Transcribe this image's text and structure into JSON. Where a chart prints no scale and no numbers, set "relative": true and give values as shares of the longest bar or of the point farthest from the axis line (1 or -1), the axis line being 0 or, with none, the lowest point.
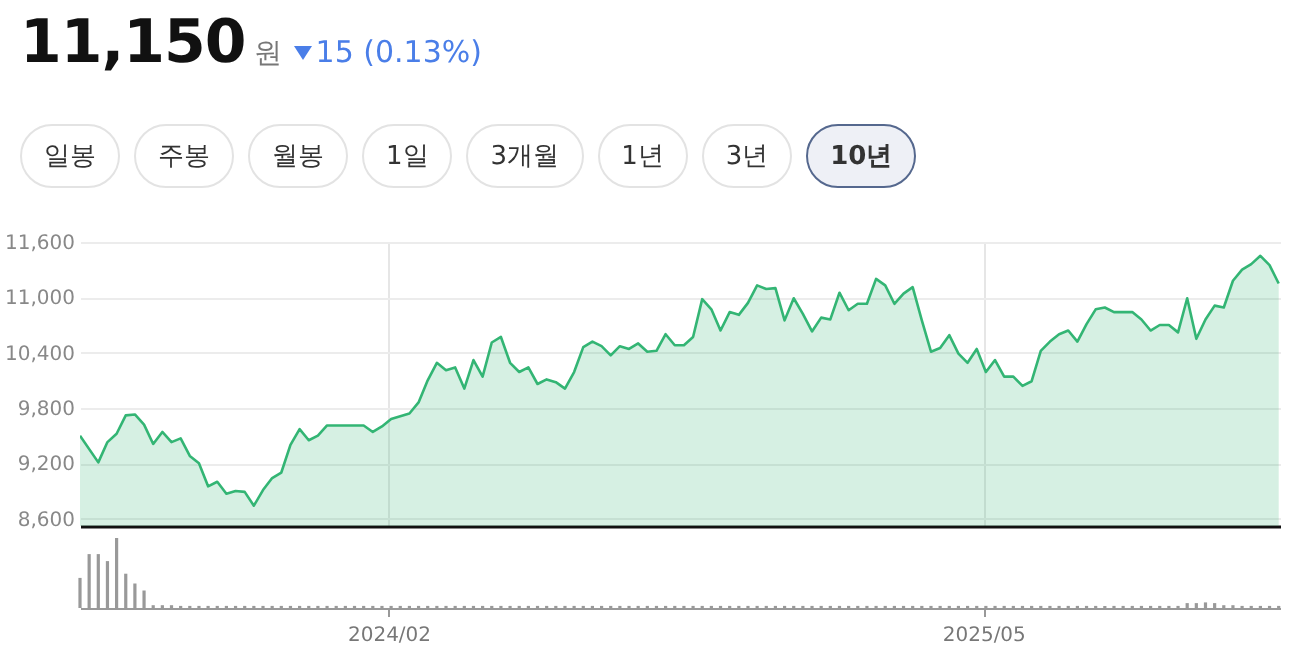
{
  "chart_data": [
    {
      "type": "area",
      "title": "11,150",
      "subtitle": "원",
      "annotations": [
        "15 (0.13%)",
        "일봉",
        "주봉",
        "월봉",
        "1일",
        "3개월",
        "1년",
        "3년",
        "10년"
      ],
      "x": [
        "2023-06-10",
        "2023-06-24",
        "2023-07-01",
        "2023-07-08",
        "2023-07-15",
        "2023-07-22",
        "2023-07-29",
        "2023-08-05",
        "2023-08-12",
        "2023-08-19",
        "2023-08-26",
        "2023-09-02",
        "2023-09-09",
        "2023-09-16",
        "2023-09-23",
        "2023-09-30",
        "2023-10-07",
        "2023-10-14",
        "2023-10-21",
        "2023-10-28",
        "2023-11-04",
        "2023-11-11",
        "2023-11-18",
        "2023-11-25",
        "2023-12-02",
        "2023-12-09",
        "2023-12-16",
        "2023-12-30",
        "2024-01-13",
        "2024-01-20",
        "2024-01-27",
        "2024-02-03",
        "2024-02-17",
        "2024-02-24",
        "2024-03-02",
        "2024-03-09",
        "2024-03-16",
        "2024-03-23",
        "2024-03-30",
        "2024-04-06",
        "2024-04-13",
        "2024-04-20",
        "2024-04-27",
        "2024-05-04",
        "2024-05-11",
        "2024-05-18",
        "2024-05-25",
        "2024-06-01",
        "2024-06-08",
        "2024-06-15",
        "2024-06-22",
        "2024-06-29",
        "2024-07-06",
        "2024-07-13",
        "2024-07-20",
        "2024-07-27",
        "2024-08-03",
        "2024-08-10",
        "2024-08-17",
        "2024-08-24",
        "2024-08-31",
        "2024-09-07",
        "2024-09-14",
        "2024-09-21",
        "2024-09-28",
        "2024-10-05",
        "2024-10-12",
        "2024-10-19",
        "2024-10-26",
        "2024-11-02",
        "2024-11-09",
        "2024-11-16",
        "2024-11-23",
        "2024-11-30",
        "2024-12-07",
        "2024-12-14",
        "2024-12-21",
        "2024-12-28",
        "2025-01-04",
        "2025-01-11",
        "2025-01-18",
        "2025-01-25",
        "2025-02-01",
        "2025-02-08",
        "2025-02-15",
        "2025-02-22",
        "2025-03-01",
        "2025-03-08",
        "2025-03-15",
        "2025-03-22",
        "2025-03-29",
        "2025-04-05",
        "2025-04-12",
        "2025-04-19",
        "2025-04-26",
        "2025-05-03",
        "2025-05-10",
        "2025-05-17",
        "2025-05-24",
        "2025-05-31",
        "2025-06-07",
        "2025-06-14",
        "2025-06-21",
        "2025-06-28",
        "2025-07-05",
        "2025-07-12",
        "2025-07-19",
        "2025-07-26",
        "2025-08-02",
        "2025-08-09",
        "2025-08-16",
        "2025-08-23",
        "2025-08-30",
        "2025-09-06",
        "2025-09-13",
        "2025-09-20",
        "2025-09-27",
        "2025-10-04",
        "2025-10-11",
        "2025-10-18",
        "2025-10-25",
        "2025-11-01",
        "2025-11-08",
        "2025-11-15",
        "2025-11-22",
        "2025-11-29",
        "2025-12-06",
        "2025-12-13"
      ],
      "series": [
        {
          "color": "#33b574",
          "values": [
            9500,
            9210,
            9430,
            9520,
            9720,
            9730,
            9620,
            9410,
            9540,
            9430,
            9470,
            9280,
            9200,
            8950,
            9000,
            8870,
            8900,
            8890,
            8740,
            8910,
            9040,
            9100,
            9400,
            9570,
            9450,
            9500,
            9610,
            9610,
            9610,
            9540,
            9600,
            9680,
            9740,
            9860,
            10100,
            10290,
            10210,
            10240,
            10010,
            10320,
            10140,
            10510,
            10570,
            10290,
            10190,
            10240,
            10060,
            10110,
            10080,
            10010,
            10190,
            10460,
            10520,
            10470,
            10370,
            10470,
            10440,
            10500,
            10410,
            10420,
            10600,
            10480,
            10480,
            10570,
            10980,
            10870,
            10640,
            10840,
            10810,
            10940,
            11130,
            11090,
            11100,
            10750,
            10990,
            10820,
            10630,
            10780,
            10760,
            11050,
            10860,
            10930,
            10930,
            11200,
            11130,
            10930,
            11040,
            11110,
            10750,
            10410,
            10450,
            10590,
            10390,
            10290,
            10440,
            10190,
            10320,
            10140,
            10140,
            10040,
            10090,
            10420,
            10520,
            10600,
            10640,
            10520,
            10710,
            10870,
            10890,
            10840,
            10840,
            10840,
            10760,
            10640,
            10700,
            10700,
            10620,
            10990,
            10550,
            10760,
            10910,
            10890,
            11180,
            11300,
            11360,
            11450,
            11350,
            11150
          ]
        }
      ],
      "xlim": [
        "2023-06-10",
        "2025-12-14"
      ],
      "xticks": [
        {
          "value": "2024-02-01",
          "label": null
        },
        {
          "value": "2025-05-01",
          "label": null
        }
      ],
      "ylim": [
        8520,
        11600
      ],
      "yticks": [
        {
          "value": 8600,
          "label": "8,600"
        },
        {
          "value": 9200,
          "label": "9,200"
        },
        {
          "value": 9800,
          "label": "9,800"
        },
        {
          "value": 10400,
          "label": "10,400"
        },
        {
          "value": 11000,
          "label": "11,000"
        },
        {
          "value": 11600,
          "label": "11,600"
        }
      ],
      "grid": true,
      "tick_labels": "y"
    },
    {
      "type": "bar",
      "relative": true,
      "tick_labels": "x",
      "x": [
        "2023-06-10",
        "2023-06-17",
        "2023-06-24",
        "2023-07-01",
        "2023-07-08",
        "2023-07-15",
        "2023-07-22",
        "2023-07-29",
        "2023-08-05",
        "2023-08-12",
        "2023-08-19",
        "2023-08-26",
        "2023-09-02",
        "2023-09-09",
        "2023-09-16",
        "2023-09-23",
        "2023-09-30",
        "2023-10-07",
        "2023-10-14",
        "2023-10-21",
        "2023-10-28",
        "2023-11-04",
        "2023-11-11",
        "2023-11-18",
        "2023-11-25",
        "2023-12-02",
        "2023-12-09",
        "2023-12-16",
        "2023-12-23",
        "2023-12-30",
        "2024-01-06",
        "2024-01-13",
        "2024-01-20",
        "2024-01-27",
        "2024-02-03",
        "2024-02-10",
        "2024-02-17",
        "2024-02-24",
        "2024-03-02",
        "2024-03-09",
        "2024-03-16",
        "2024-03-23",
        "2024-03-30",
        "2024-04-06",
        "2024-04-13",
        "2024-04-20",
        "2024-04-27",
        "2024-05-04",
        "2024-05-11",
        "2024-05-18",
        "2024-05-25",
        "2024-06-01",
        "2024-06-08",
        "2024-06-15",
        "2024-06-22",
        "2024-06-29",
        "2024-07-06",
        "2024-07-13",
        "2024-07-20",
        "2024-07-27",
        "2024-08-03",
        "2024-08-10",
        "2024-08-17",
        "2024-08-24",
        "2024-08-31",
        "2024-09-07",
        "2024-09-14",
        "2024-09-21",
        "2024-09-28",
        "2024-10-05",
        "2024-10-12",
        "2024-10-19",
        "2024-10-26",
        "2024-11-02",
        "2024-11-09",
        "2024-11-16",
        "2024-11-23",
        "2024-11-30",
        "2024-12-07",
        "2024-12-14",
        "2024-12-21",
        "2024-12-28",
        "2025-01-04",
        "2025-01-11",
        "2025-01-18",
        "2025-01-25",
        "2025-02-01",
        "2025-02-08",
        "2025-02-15",
        "2025-02-22",
        "2025-03-01",
        "2025-03-08",
        "2025-03-15",
        "2025-03-22",
        "2025-03-29",
        "2025-04-05",
        "2025-04-12",
        "2025-04-19",
        "2025-04-26",
        "2025-05-03",
        "2025-05-10",
        "2025-05-17",
        "2025-05-24",
        "2025-05-31",
        "2025-06-07",
        "2025-06-14",
        "2025-06-21",
        "2025-06-28",
        "2025-07-05",
        "2025-07-12",
        "2025-07-19",
        "2025-07-26",
        "2025-08-02",
        "2025-08-09",
        "2025-08-16",
        "2025-08-23",
        "2025-08-30",
        "2025-09-06",
        "2025-09-13",
        "2025-09-20",
        "2025-09-27",
        "2025-10-04",
        "2025-10-11",
        "2025-10-18",
        "2025-10-25",
        "2025-11-01",
        "2025-11-08",
        "2025-11-15",
        "2025-11-22",
        "2025-11-29",
        "2025-12-06",
        "2025-12-13"
      ],
      "series": [
        {
          "color": "#999999",
          "values": [
            0.43,
            0.77,
            0.77,
            0.67,
            1,
            0.49,
            0.35,
            0.25,
            0.04,
            0.04,
            0.04,
            0.03,
            0.03,
            0.03,
            0.03,
            0.03,
            0.03,
            0.03,
            0.03,
            0.03,
            0.03,
            0.03,
            0.03,
            0.03,
            0.03,
            0.03,
            0.03,
            0.03,
            0.03,
            0.03,
            0.03,
            0.03,
            0.03,
            0.03,
            0.03,
            0.03,
            0.03,
            0.03,
            0.03,
            0.03,
            0.03,
            0.03,
            0.03,
            0.03,
            0.03,
            0.03,
            0.03,
            0.03,
            0.03,
            0.03,
            0.03,
            0.03,
            0.03,
            0.03,
            0.03,
            0.03,
            0.03,
            0.03,
            0.03,
            0.03,
            0.03,
            0.03,
            0.03,
            0.03,
            0.03,
            0.03,
            0.03,
            0.03,
            0.03,
            0.03,
            0.03,
            0.03,
            0.03,
            0.03,
            0.03,
            0.03,
            0.03,
            0.03,
            0.03,
            0.03,
            0.03,
            0.03,
            0.03,
            0.03,
            0.03,
            0.03,
            0.03,
            0.03,
            0.03,
            0.03,
            0.03,
            0.03,
            0.03,
            0.03,
            0.03,
            0.03,
            0.03,
            0.03,
            0.03,
            0.03,
            0.03,
            0.03,
            0.03,
            0.03,
            0.03,
            0.03,
            0.03,
            0.03,
            0.03,
            0.03,
            0.03,
            0.03,
            0.03,
            0.03,
            0.03,
            0.03,
            0.03,
            0.03,
            0.03,
            0.03,
            0.03,
            0.07,
            0.07,
            0.08,
            0.07,
            0.04,
            0.04,
            0.03,
            0.03,
            0.03,
            0.03,
            0.03
          ]
        }
      ],
      "xlim": [
        "2023-06-10",
        "2025-12-14"
      ],
      "xticks": [
        {
          "value": "2024-02-01",
          "label": "2024/02"
        },
        {
          "value": "2025-05-01",
          "label": "2025/05"
        }
      ]
    }
  ]
}
